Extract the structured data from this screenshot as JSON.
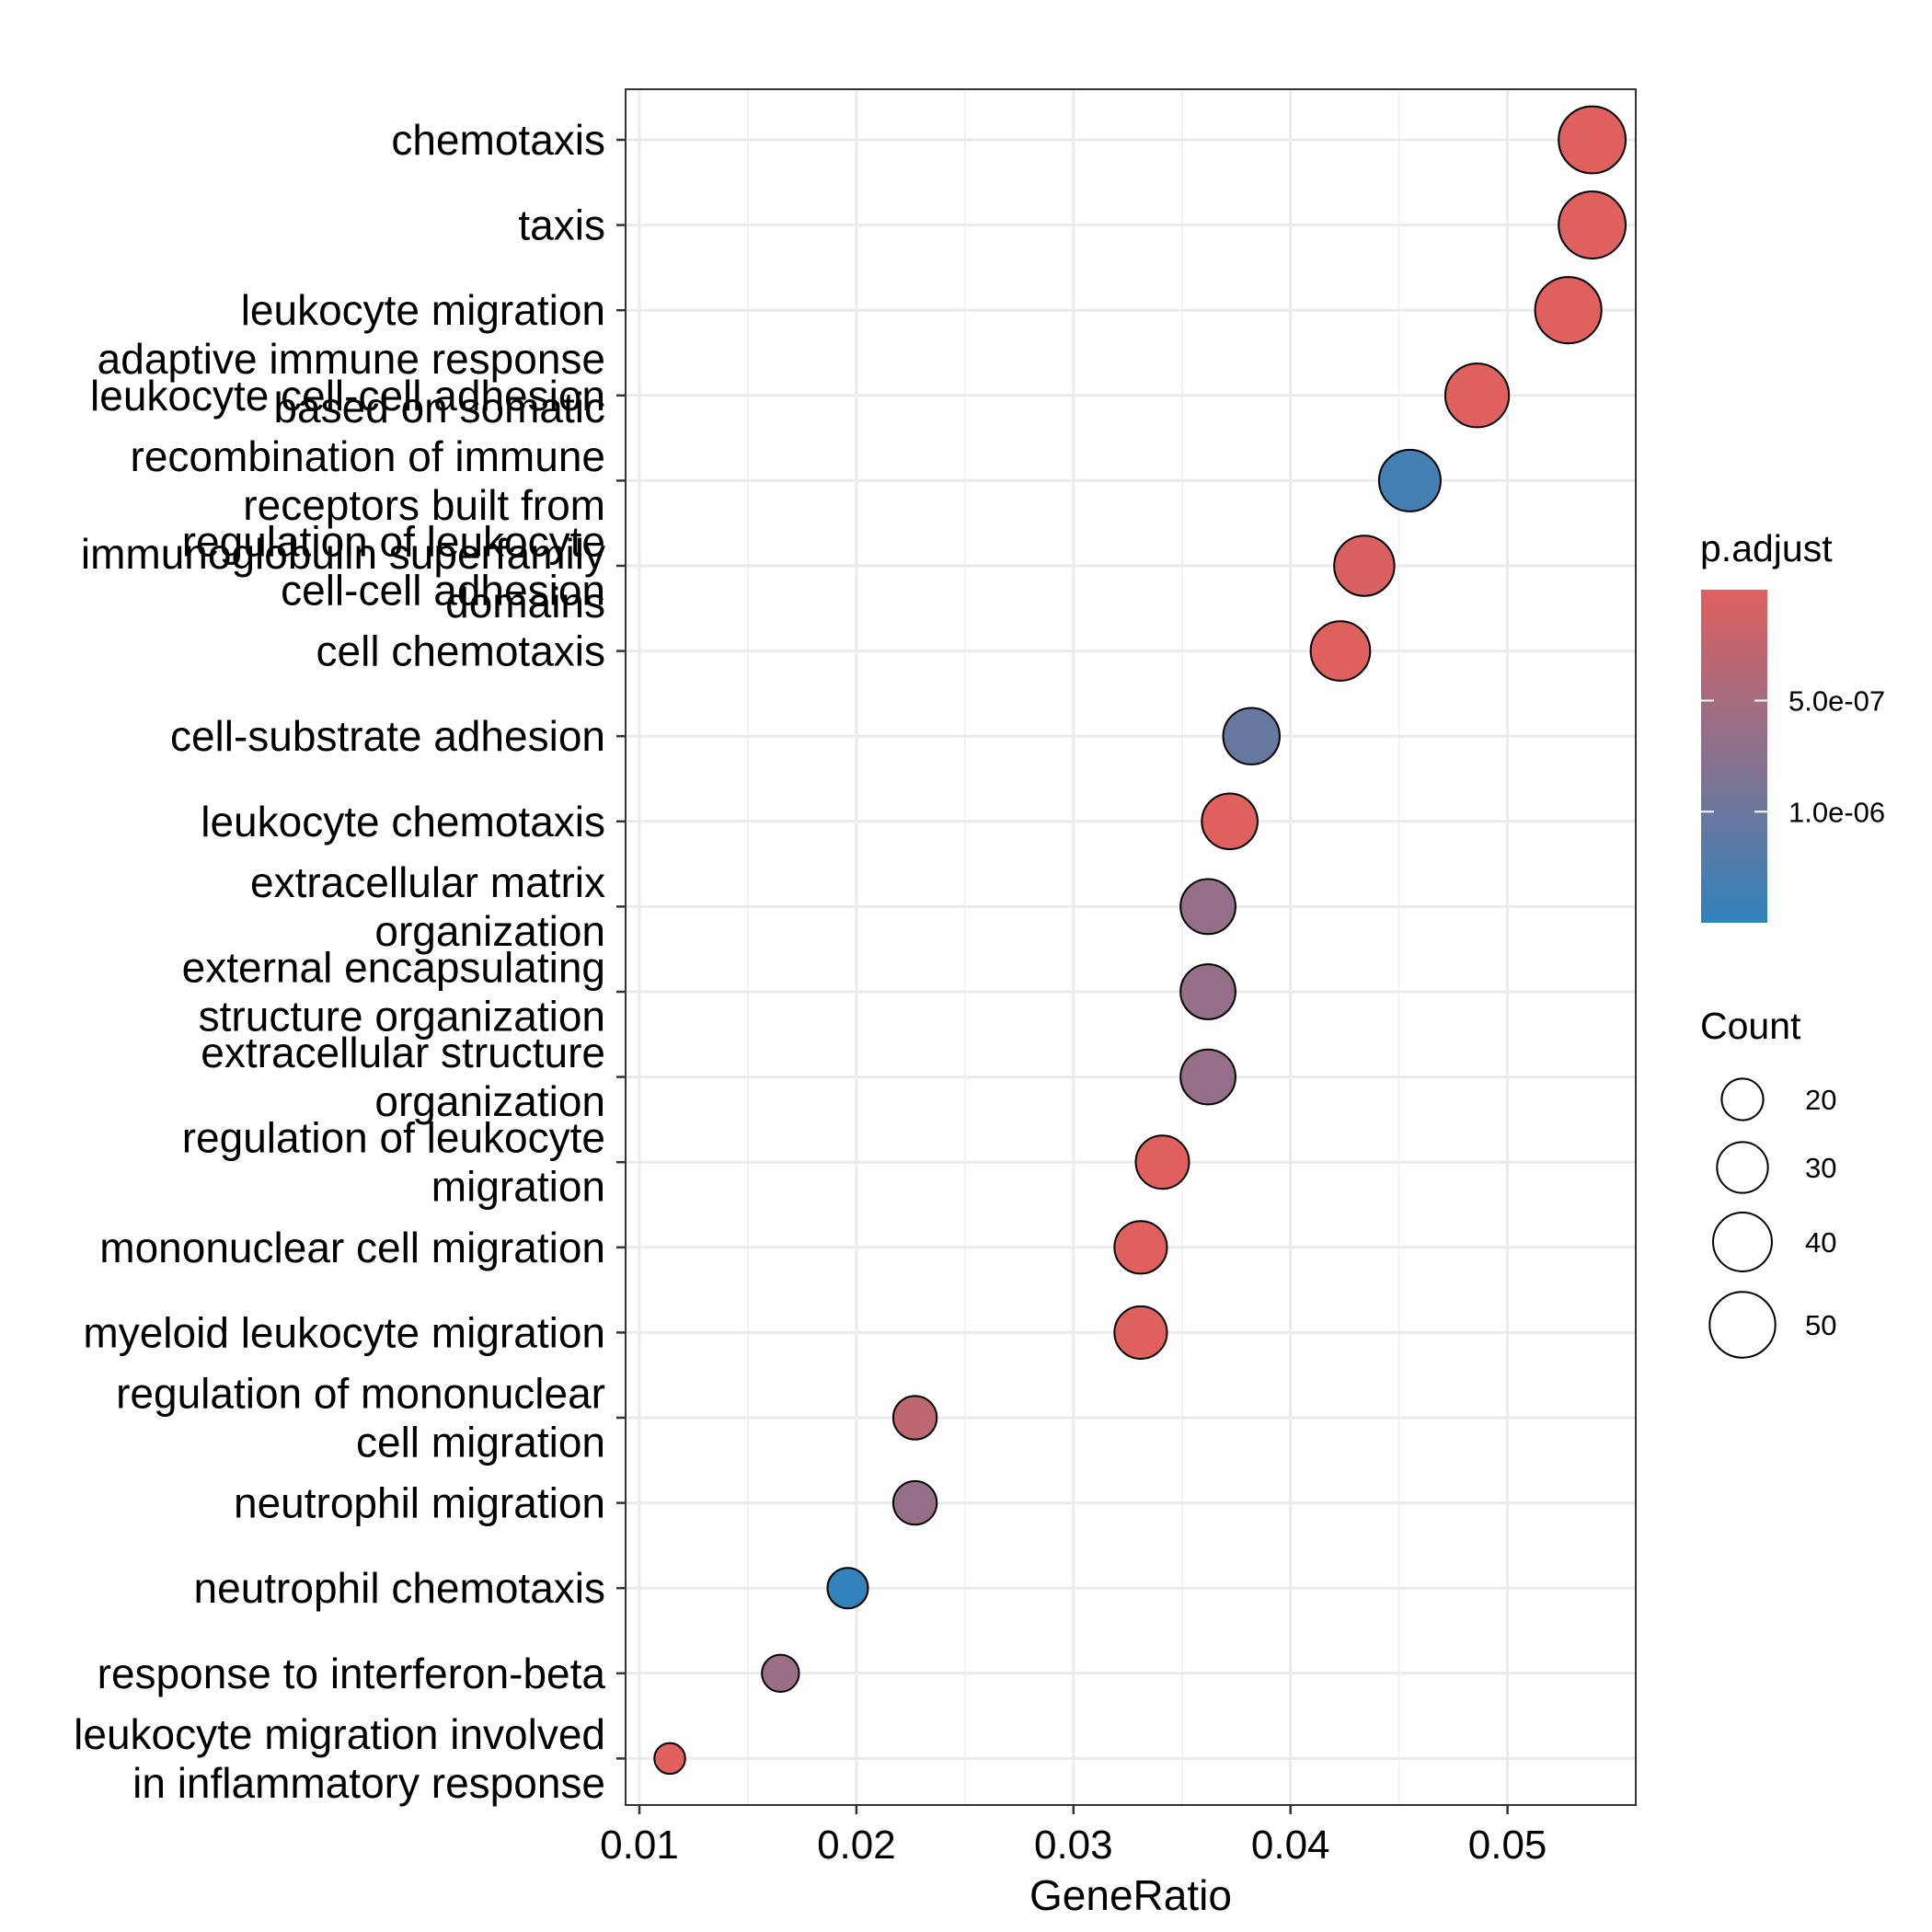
{
  "chart_data": {
    "type": "scatter",
    "xlabel": "GeneRatio",
    "x_ticks": [
      0.01,
      0.02,
      0.03,
      0.04,
      0.05
    ],
    "x_tick_labels": [
      "0.01",
      "0.02",
      "0.03",
      "0.04",
      "0.05"
    ],
    "xlim": [
      0.0093,
      0.0558
    ],
    "grid": true,
    "categories": [
      [
        "chemotaxis"
      ],
      [
        "taxis"
      ],
      [
        "leukocyte migration"
      ],
      [
        "leukocyte cell-cell adhesion"
      ],
      [
        "adaptive immune response",
        "based on somatic",
        "recombination of immune",
        "receptors built from",
        "immunoglobulin superfamily",
        "domains"
      ],
      [
        "regulation of leukocyte",
        "cell-cell adhesion"
      ],
      [
        "cell chemotaxis"
      ],
      [
        "cell-substrate adhesion"
      ],
      [
        "leukocyte chemotaxis"
      ],
      [
        "extracellular matrix",
        "organization"
      ],
      [
        "external encapsulating",
        "structure organization"
      ],
      [
        "extracellular structure",
        "organization"
      ],
      [
        "regulation of leukocyte",
        "migration"
      ],
      [
        "mononuclear cell migration"
      ],
      [
        "myeloid leukocyte migration"
      ],
      [
        "regulation of mononuclear",
        "cell migration"
      ],
      [
        "neutrophil migration"
      ],
      [
        "neutrophil chemotaxis"
      ],
      [
        "response to interferon-beta"
      ],
      [
        "leukocyte migration involved",
        "in inflammatory response"
      ]
    ],
    "gene_ratio": [
      0.0539,
      0.0539,
      0.0528,
      0.0486,
      0.0455,
      0.0434,
      0.0423,
      0.0382,
      0.0372,
      0.0362,
      0.0362,
      0.0362,
      0.0341,
      0.0331,
      0.0331,
      0.0227,
      0.0227,
      0.0196,
      0.0165,
      0.0114
    ],
    "count": [
      52,
      52,
      51,
      47,
      44,
      42,
      41,
      37,
      36,
      35,
      35,
      35,
      33,
      32,
      32,
      22,
      22,
      19,
      16,
      11
    ],
    "p_adjust": [
      1e-09,
      1e-09,
      1e-09,
      1e-09,
      1.35e-06,
      5e-08,
      1e-09,
      1.05e-06,
      1e-09,
      6.5e-07,
      6.5e-07,
      6.5e-07,
      1e-09,
      1e-09,
      1e-09,
      3e-07,
      6.5e-07,
      1.5e-06,
      6e-07,
      1e-09
    ],
    "legend_color": {
      "title": "p.adjust",
      "ticks": [
        5e-07,
        1e-06
      ],
      "tick_labels": [
        "5.0e-07",
        "1.0e-06"
      ],
      "range": [
        1e-09,
        1.5e-06
      ],
      "low_color": "#E0605E",
      "high_color": "#3182BD"
    },
    "legend_size": {
      "title": "Count",
      "values": [
        20,
        30,
        40,
        50
      ],
      "labels": [
        "20",
        "30",
        "40",
        "50"
      ]
    },
    "legend_position": "right"
  }
}
